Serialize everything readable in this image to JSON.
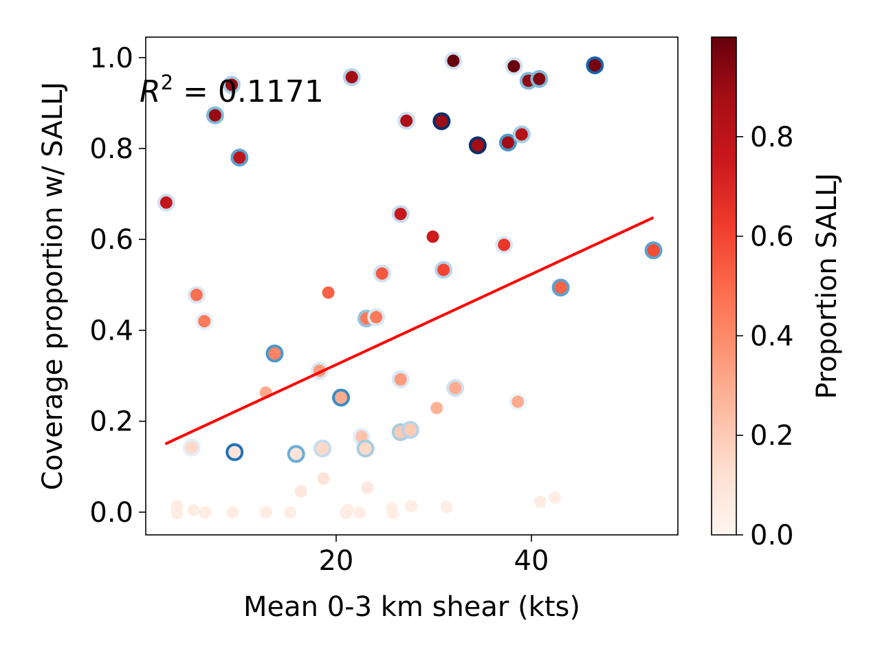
{
  "chart_data": {
    "type": "scatter",
    "xlabel": "Mean 0-3 km shear (kts)",
    "ylabel": "Coverage proportion w/ SALLJ",
    "xlim": [
      0.5,
      55
    ],
    "ylim": [
      -0.05,
      1.045
    ],
    "x_ticks": [
      20,
      40
    ],
    "y_ticks": [
      0.0,
      0.2,
      0.4,
      0.6,
      0.8,
      1.0
    ],
    "x_tick_labels": [
      "20",
      "40"
    ],
    "y_tick_labels": [
      "0.0",
      "0.2",
      "0.4",
      "0.6",
      "0.8",
      "1.0"
    ],
    "annotation": "R^2 = 0.1171",
    "annotation_parts": {
      "base": "R",
      "sup": "2",
      "rest": " = 0.1171"
    },
    "colorbar": {
      "label": "Proportion SALLJ",
      "colormap": "Reds",
      "range": [
        0.0,
        1.0
      ],
      "ticks": [
        0.0,
        0.2,
        0.4,
        0.6,
        0.8
      ],
      "tick_labels": [
        "0.0",
        "0.2",
        "0.4",
        "0.6",
        "0.8"
      ]
    },
    "fit_line": {
      "color": "#ff0000",
      "x": [
        2.5,
        52.5
      ],
      "y": [
        0.15,
        0.648
      ]
    },
    "grid": false,
    "points": [
      {
        "x": 9.3,
        "y": 0.94,
        "c": 0.9,
        "e": 0.35
      },
      {
        "x": 21.6,
        "y": 0.957,
        "c": 0.88,
        "e": 0.3
      },
      {
        "x": 32.0,
        "y": 0.993,
        "c": 1.0,
        "e": 0.2
      },
      {
        "x": 38.2,
        "y": 0.981,
        "c": 1.0,
        "e": 0.2
      },
      {
        "x": 39.7,
        "y": 0.949,
        "c": 0.92,
        "e": 0.45
      },
      {
        "x": 40.8,
        "y": 0.953,
        "c": 0.95,
        "e": 0.45
      },
      {
        "x": 46.5,
        "y": 0.983,
        "c": 0.97,
        "e": 0.8
      },
      {
        "x": 7.6,
        "y": 0.873,
        "c": 0.9,
        "e": 0.45
      },
      {
        "x": 27.2,
        "y": 0.861,
        "c": 0.85,
        "e": 0.22
      },
      {
        "x": 30.8,
        "y": 0.86,
        "c": 0.9,
        "e": 1.0
      },
      {
        "x": 34.5,
        "y": 0.807,
        "c": 0.88,
        "e": 1.0
      },
      {
        "x": 37.6,
        "y": 0.813,
        "c": 0.88,
        "e": 0.6
      },
      {
        "x": 39.0,
        "y": 0.831,
        "c": 0.82,
        "e": 0.35
      },
      {
        "x": 10.1,
        "y": 0.78,
        "c": 0.8,
        "e": 0.55
      },
      {
        "x": 2.6,
        "y": 0.681,
        "c": 0.78,
        "e": 0.2
      },
      {
        "x": 26.6,
        "y": 0.656,
        "c": 0.76,
        "e": 0.25
      },
      {
        "x": 29.9,
        "y": 0.606,
        "c": 0.74,
        "e": null
      },
      {
        "x": 37.2,
        "y": 0.588,
        "c": 0.64,
        "e": 0.15
      },
      {
        "x": 52.5,
        "y": 0.576,
        "c": 0.58,
        "e": 0.55
      },
      {
        "x": 31.0,
        "y": 0.533,
        "c": 0.6,
        "e": 0.3
      },
      {
        "x": 24.7,
        "y": 0.525,
        "c": 0.55,
        "e": 0.2
      },
      {
        "x": 19.2,
        "y": 0.483,
        "c": 0.52,
        "e": null
      },
      {
        "x": 43.0,
        "y": 0.494,
        "c": 0.52,
        "e": 0.55
      },
      {
        "x": 5.7,
        "y": 0.478,
        "c": 0.48,
        "e": 0.15
      },
      {
        "x": 6.5,
        "y": 0.42,
        "c": 0.45,
        "e": 0.1
      },
      {
        "x": 23.1,
        "y": 0.426,
        "c": 0.45,
        "e": 0.4
      },
      {
        "x": 24.1,
        "y": 0.429,
        "c": 0.45,
        "e": 0.15
      },
      {
        "x": 13.7,
        "y": 0.349,
        "c": 0.42,
        "e": 0.6
      },
      {
        "x": 18.3,
        "y": 0.311,
        "c": 0.35,
        "e": 0.15
      },
      {
        "x": 26.6,
        "y": 0.292,
        "c": 0.35,
        "e": 0.15
      },
      {
        "x": 12.8,
        "y": 0.263,
        "c": 0.3,
        "e": null
      },
      {
        "x": 32.2,
        "y": 0.273,
        "c": 0.3,
        "e": 0.2
      },
      {
        "x": 20.5,
        "y": 0.252,
        "c": 0.3,
        "e": 0.65
      },
      {
        "x": 30.3,
        "y": 0.229,
        "c": 0.28,
        "e": null
      },
      {
        "x": 38.6,
        "y": 0.243,
        "c": 0.3,
        "e": 0.05
      },
      {
        "x": 22.6,
        "y": 0.166,
        "c": 0.22,
        "e": 0.1
      },
      {
        "x": 26.6,
        "y": 0.176,
        "c": 0.2,
        "e": 0.35
      },
      {
        "x": 27.6,
        "y": 0.181,
        "c": 0.2,
        "e": 0.3
      },
      {
        "x": 5.2,
        "y": 0.142,
        "c": 0.15,
        "e": 0.1
      },
      {
        "x": 9.6,
        "y": 0.132,
        "c": 0.1,
        "e": 0.75
      },
      {
        "x": 15.9,
        "y": 0.128,
        "c": 0.1,
        "e": 0.5
      },
      {
        "x": 18.6,
        "y": 0.14,
        "c": 0.15,
        "e": 0.25
      },
      {
        "x": 23.0,
        "y": 0.14,
        "c": 0.15,
        "e": 0.35
      },
      {
        "x": 18.7,
        "y": 0.074,
        "c": 0.1,
        "e": null
      },
      {
        "x": 16.4,
        "y": 0.046,
        "c": 0.08,
        "e": null
      },
      {
        "x": 23.2,
        "y": 0.054,
        "c": 0.08,
        "e": null
      },
      {
        "x": 3.7,
        "y": 0.014,
        "c": 0.05,
        "e": null
      },
      {
        "x": 3.7,
        "y": -0.002,
        "c": 0.05,
        "e": null
      },
      {
        "x": 5.4,
        "y": 0.004,
        "c": 0.05,
        "e": null
      },
      {
        "x": 6.6,
        "y": -0.001,
        "c": 0.05,
        "e": null
      },
      {
        "x": 9.4,
        "y": 0.0,
        "c": 0.05,
        "e": null
      },
      {
        "x": 12.8,
        "y": 0.0,
        "c": 0.05,
        "e": null
      },
      {
        "x": 15.3,
        "y": -0.001,
        "c": 0.05,
        "e": null
      },
      {
        "x": 21.2,
        "y": 0.005,
        "c": 0.05,
        "e": null
      },
      {
        "x": 21.0,
        "y": -0.002,
        "c": 0.05,
        "e": null
      },
      {
        "x": 22.4,
        "y": -0.001,
        "c": 0.05,
        "e": null
      },
      {
        "x": 25.7,
        "y": 0.008,
        "c": 0.05,
        "e": null
      },
      {
        "x": 25.8,
        "y": -0.002,
        "c": 0.05,
        "e": null
      },
      {
        "x": 27.7,
        "y": 0.013,
        "c": 0.05,
        "e": null
      },
      {
        "x": 31.3,
        "y": 0.011,
        "c": 0.05,
        "e": null
      },
      {
        "x": 40.9,
        "y": 0.023,
        "c": 0.05,
        "e": null
      },
      {
        "x": 42.4,
        "y": 0.032,
        "c": 0.05,
        "e": null
      }
    ]
  }
}
